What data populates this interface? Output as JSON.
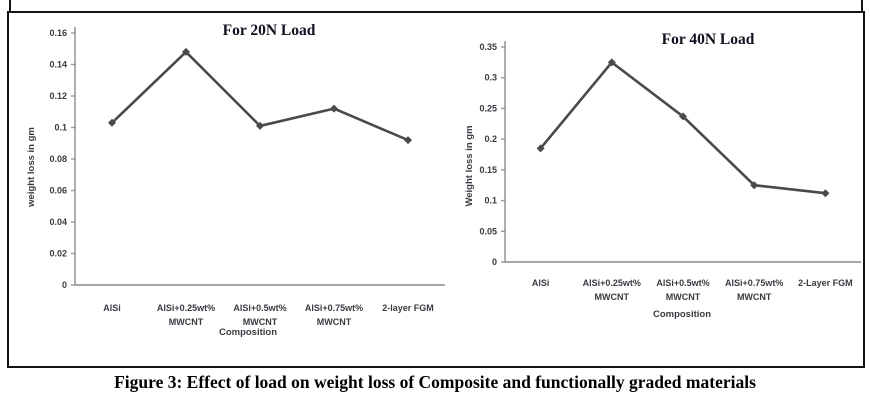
{
  "figure": {
    "caption": "Figure 3: Effect of load on weight loss of Composite and functionally graded materials"
  },
  "colors": {
    "series_line": "#4a4a4a",
    "marker": "#4a4a4a",
    "axis_line": "#9a9a9a",
    "tick_text": "#3a3a42",
    "title_text": "#10101e"
  },
  "chart_data": [
    {
      "type": "line",
      "title": "For 20N Load",
      "xlabel": "Composition",
      "ylabel": "weight loss in gm",
      "categories": [
        [
          "AlSi"
        ],
        [
          "AlSi+0.25wt%",
          "MWCNT"
        ],
        [
          "AlSi+0.5wt%",
          "MWCNT"
        ],
        [
          "AlSi+0.75wt%",
          "MWCNT"
        ],
        [
          "2-layer FGM"
        ]
      ],
      "values": [
        0.103,
        0.148,
        0.101,
        0.112,
        0.092
      ],
      "yticks": [
        "0",
        "0.02",
        "0.04",
        "0.06",
        "0.08",
        "0.1",
        "0.12",
        "0.14",
        "0.16"
      ],
      "ylim": [
        0,
        0.16
      ],
      "grid": false,
      "legend": null,
      "marker": "diamond"
    },
    {
      "type": "line",
      "title": "For 40N Load",
      "xlabel": "Composition",
      "ylabel": "Weight loss in gm",
      "categories": [
        [
          "AlSi"
        ],
        [
          "AlSi+0.25wt%",
          "MWCNT"
        ],
        [
          "AlSi+0.5wt%",
          "MWCNT"
        ],
        [
          "AlSi+0.75wt%",
          "MWCNT"
        ],
        [
          "2-Layer FGM"
        ]
      ],
      "values": [
        0.185,
        0.325,
        0.237,
        0.125,
        0.112
      ],
      "yticks": [
        "0",
        "0.05",
        "0.1",
        "0.15",
        "0.2",
        "0.25",
        "0.3",
        "0.35"
      ],
      "ylim": [
        0,
        0.35
      ],
      "grid": false,
      "legend": null,
      "marker": "diamond"
    }
  ]
}
